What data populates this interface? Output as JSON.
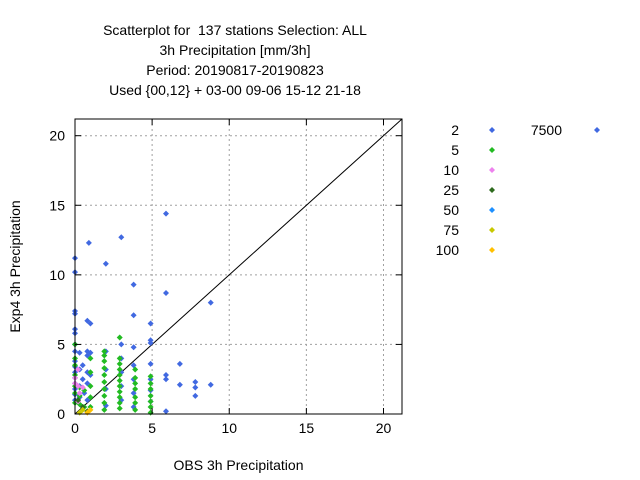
{
  "chart_data": {
    "type": "scatter",
    "title_lines": [
      "Scatterplot for  137 stations Selection: ALL",
      "3h Precipitation [mm/3h]",
      "Period: 20190817-20190823",
      "Used {00,12} + 03-00 09-06 15-12 21-18"
    ],
    "xlabel": "OBS 3h Precipitation",
    "ylabel": "Exp4 3h Precipitation",
    "xlim": [
      0,
      21.2
    ],
    "ylim": [
      0,
      21.2
    ],
    "xticks": [
      "0",
      "5",
      "10",
      "15",
      "20"
    ],
    "yticks": [
      "0",
      "5",
      "10",
      "15",
      "20"
    ],
    "grid": true,
    "diagonal_line": true,
    "legend_placement": "right",
    "legend": [
      {
        "label": "2",
        "color": "#4169e1"
      },
      {
        "label": "5",
        "color": "#22bb22"
      },
      {
        "label": "10",
        "color": "#ee82ee"
      },
      {
        "label": "25",
        "color": "#2e6b1e"
      },
      {
        "label": "50",
        "color": "#1e90ff"
      },
      {
        "label": "75",
        "color": "#c8c800"
      },
      {
        "label": "100",
        "color": "#ffc000"
      },
      {
        "label": "7500",
        "color": "#4169e1"
      }
    ],
    "series": [
      {
        "name": "2",
        "color": "#4169e1",
        "points": [
          [
            0,
            11.2
          ],
          [
            0,
            10.2
          ],
          [
            0,
            7.4
          ],
          [
            0,
            7.2
          ],
          [
            0,
            6.1
          ],
          [
            0,
            5.8
          ],
          [
            0,
            5.0
          ],
          [
            0,
            4.5
          ],
          [
            0,
            3.8
          ],
          [
            0,
            3.4
          ],
          [
            0,
            3.0
          ],
          [
            0,
            2.6
          ],
          [
            0,
            2.2
          ],
          [
            0,
            1.8
          ],
          [
            0,
            1.4
          ],
          [
            0,
            1.0
          ],
          [
            0.3,
            4.4
          ],
          [
            0.3,
            3.2
          ],
          [
            0.3,
            2.0
          ],
          [
            0.3,
            1.2
          ],
          [
            0.5,
            3.5
          ],
          [
            0.5,
            2.5
          ],
          [
            0.6,
            1.5
          ],
          [
            0.8,
            6.7
          ],
          [
            0.8,
            4.5
          ],
          [
            0.8,
            4.2
          ],
          [
            0.8,
            3.0
          ],
          [
            0.8,
            2.2
          ],
          [
            0.8,
            1.0
          ],
          [
            0.9,
            12.3
          ],
          [
            1.0,
            6.5
          ],
          [
            1.0,
            4.4
          ],
          [
            1.0,
            2.8
          ],
          [
            2.0,
            10.8
          ],
          [
            2.0,
            4.5
          ],
          [
            2.0,
            3.2
          ],
          [
            2.0,
            1.8
          ],
          [
            2.0,
            0.6
          ],
          [
            3.0,
            12.7
          ],
          [
            3.0,
            5.0
          ],
          [
            3.0,
            4.0
          ],
          [
            3.0,
            3.0
          ],
          [
            3.0,
            2.0
          ],
          [
            3.0,
            1.0
          ],
          [
            3.8,
            9.3
          ],
          [
            3.8,
            7.1
          ],
          [
            3.8,
            4.8
          ],
          [
            3.8,
            3.5
          ],
          [
            3.8,
            2.5
          ],
          [
            3.8,
            1.5
          ],
          [
            3.8,
            0.5
          ],
          [
            4.9,
            6.5
          ],
          [
            4.9,
            5.3
          ],
          [
            4.9,
            5.1
          ],
          [
            4.9,
            3.6
          ],
          [
            4.9,
            2.5
          ],
          [
            4.9,
            1.7
          ],
          [
            4.9,
            0.9
          ],
          [
            5.9,
            14.4
          ],
          [
            5.9,
            8.7
          ],
          [
            5.9,
            2.8
          ],
          [
            5.9,
            2.5
          ],
          [
            5.9,
            0.2
          ],
          [
            6.8,
            3.6
          ],
          [
            6.8,
            2.1
          ],
          [
            7.8,
            2.3
          ],
          [
            7.8,
            1.9
          ],
          [
            7.8,
            1.3
          ],
          [
            8.8,
            8.0
          ],
          [
            8.8,
            2.1
          ]
        ]
      },
      {
        "name": "5",
        "color": "#22bb22",
        "points": [
          [
            0,
            5.0
          ],
          [
            0,
            4.0
          ],
          [
            0,
            3.5
          ],
          [
            0,
            2.8
          ],
          [
            0,
            2.0
          ],
          [
            0,
            1.5
          ],
          [
            0,
            0.8
          ],
          [
            0.3,
            1.9
          ],
          [
            0.3,
            1.3
          ],
          [
            0.3,
            0.7
          ],
          [
            0.6,
            0.5
          ],
          [
            0.6,
            1.7
          ],
          [
            1.0,
            4.0
          ],
          [
            1.0,
            3.0
          ],
          [
            1.0,
            2.0
          ],
          [
            1.0,
            1.2
          ],
          [
            1.0,
            0.5
          ],
          [
            1.9,
            4.5
          ],
          [
            1.9,
            4.2
          ],
          [
            1.9,
            3.8
          ],
          [
            1.9,
            3.3
          ],
          [
            1.9,
            2.8
          ],
          [
            1.9,
            2.3
          ],
          [
            1.9,
            1.8
          ],
          [
            1.9,
            1.3
          ],
          [
            1.9,
            0.8
          ],
          [
            1.9,
            0.3
          ],
          [
            2.9,
            5.5
          ],
          [
            2.9,
            4.0
          ],
          [
            2.9,
            3.6
          ],
          [
            2.9,
            3.2
          ],
          [
            2.9,
            2.8
          ],
          [
            2.9,
            2.4
          ],
          [
            2.9,
            2.0
          ],
          [
            2.9,
            1.6
          ],
          [
            2.9,
            1.2
          ],
          [
            2.9,
            0.8
          ],
          [
            2.9,
            0.4
          ],
          [
            3.9,
            3.2
          ],
          [
            3.9,
            2.6
          ],
          [
            3.9,
            2.2
          ],
          [
            3.9,
            1.8
          ],
          [
            3.9,
            1.2
          ],
          [
            3.9,
            0.8
          ],
          [
            3.9,
            0.3
          ],
          [
            4.9,
            2.7
          ],
          [
            4.9,
            2.2
          ],
          [
            4.9,
            1.8
          ],
          [
            4.9,
            1.3
          ],
          [
            4.9,
            0.9
          ],
          [
            4.9,
            0.5
          ],
          [
            4.9,
            0.1
          ]
        ]
      },
      {
        "name": "10",
        "color": "#ee82ee",
        "points": [
          [
            0,
            2.6
          ],
          [
            0,
            2.2
          ],
          [
            0.2,
            3.2
          ],
          [
            0.2,
            2.0
          ],
          [
            0.3,
            1.5
          ],
          [
            0.5,
            1.9
          ],
          [
            0.2,
            0.9
          ]
        ]
      },
      {
        "name": "25",
        "color": "#2e6b1e",
        "points": [
          [
            0.2,
            1.0
          ],
          [
            0.5,
            0.5
          ],
          [
            0.8,
            0.2
          ]
        ]
      },
      {
        "name": "50",
        "color": "#1e90ff",
        "points": []
      },
      {
        "name": "75",
        "color": "#c8c800",
        "points": [
          [
            0.3,
            0.1
          ],
          [
            0.5,
            0.3
          ]
        ]
      },
      {
        "name": "100",
        "color": "#ffc000",
        "points": [
          [
            0.8,
            0.1
          ],
          [
            1.0,
            0.3
          ]
        ]
      }
    ]
  }
}
